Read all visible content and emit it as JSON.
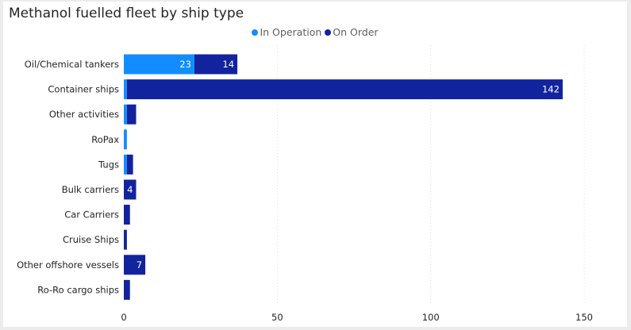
{
  "title": "Methanol fuelled fleet by ship type",
  "legend": {
    "items": [
      {
        "label": "In Operation",
        "color": "#118DFF"
      },
      {
        "label": "On Order",
        "color": "#12239E"
      }
    ]
  },
  "chart_data": {
    "type": "bar",
    "orientation": "horizontal",
    "stacked": true,
    "title": "Methanol fuelled fleet by ship type",
    "categories": [
      "Oil/Chemical tankers",
      "Container ships",
      "Other activities",
      "RoPax",
      "Tugs",
      "Bulk carriers",
      "Car Carriers",
      "Cruise Ships",
      "Other offshore vessels",
      "Ro-Ro cargo ships"
    ],
    "series": [
      {
        "name": "In Operation",
        "color": "#118DFF",
        "values": [
          23,
          1,
          1,
          1,
          1,
          0,
          0,
          0,
          0,
          0
        ],
        "data_labels": [
          "23",
          "",
          "",
          "",
          "",
          "",
          "",
          "",
          "",
          ""
        ]
      },
      {
        "name": "On Order",
        "color": "#12239E",
        "values": [
          14,
          142,
          3,
          0,
          2,
          4,
          2,
          1,
          7,
          2
        ],
        "data_labels": [
          "14",
          "142",
          "",
          "",
          "",
          "4",
          "",
          "",
          "7",
          ""
        ]
      }
    ],
    "xticks": [
      "0",
      "50",
      "100",
      "150"
    ],
    "xlim": [
      0,
      155
    ],
    "grid": true,
    "legend_position": "top-center"
  }
}
